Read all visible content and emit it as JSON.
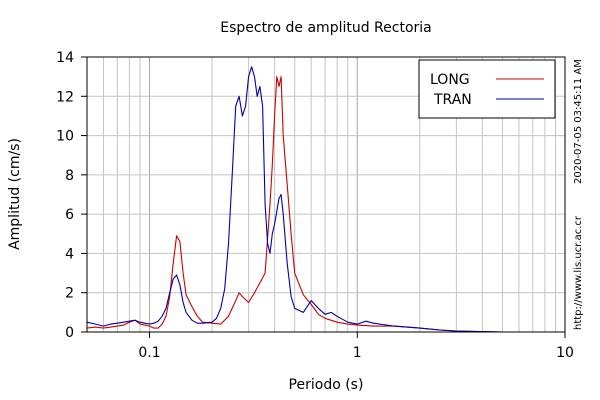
{
  "chart_data": {
    "type": "line",
    "title": "Espectro de amplitud Rectoria",
    "xlabel": "Periodo (s)",
    "ylabel": "Amplitud (cm/s)",
    "x_scale": "log",
    "xlim": [
      0.05,
      10
    ],
    "ylim": [
      0,
      14
    ],
    "x_ticks": [
      {
        "value": 0.1,
        "label": "0.1"
      },
      {
        "value": 1,
        "label": "1"
      },
      {
        "value": 10,
        "label": "10"
      }
    ],
    "y_ticks": [
      {
        "value": 0,
        "label": "0"
      },
      {
        "value": 2,
        "label": "2"
      },
      {
        "value": 4,
        "label": "4"
      },
      {
        "value": 6,
        "label": "6"
      },
      {
        "value": 8,
        "label": "8"
      },
      {
        "value": 10,
        "label": "10"
      },
      {
        "value": 12,
        "label": "12"
      },
      {
        "value": 14,
        "label": "14"
      }
    ],
    "grid": true,
    "legend": "top-right",
    "series": [
      {
        "name": "LONG",
        "color": "#cc0000",
        "points": [
          [
            0.05,
            0.2
          ],
          [
            0.055,
            0.25
          ],
          [
            0.06,
            0.2
          ],
          [
            0.065,
            0.25
          ],
          [
            0.07,
            0.3
          ],
          [
            0.075,
            0.35
          ],
          [
            0.08,
            0.5
          ],
          [
            0.085,
            0.6
          ],
          [
            0.09,
            0.4
          ],
          [
            0.095,
            0.35
          ],
          [
            0.1,
            0.3
          ],
          [
            0.105,
            0.2
          ],
          [
            0.11,
            0.2
          ],
          [
            0.115,
            0.4
          ],
          [
            0.12,
            0.8
          ],
          [
            0.125,
            1.8
          ],
          [
            0.13,
            3.5
          ],
          [
            0.135,
            4.9
          ],
          [
            0.14,
            4.6
          ],
          [
            0.145,
            3.0
          ],
          [
            0.15,
            1.9
          ],
          [
            0.16,
            1.3
          ],
          [
            0.17,
            0.8
          ],
          [
            0.18,
            0.5
          ],
          [
            0.2,
            0.45
          ],
          [
            0.22,
            0.4
          ],
          [
            0.24,
            0.8
          ],
          [
            0.26,
            1.6
          ],
          [
            0.27,
            2.0
          ],
          [
            0.28,
            1.8
          ],
          [
            0.3,
            1.5
          ],
          [
            0.32,
            2.0
          ],
          [
            0.34,
            2.5
          ],
          [
            0.36,
            3.0
          ],
          [
            0.38,
            6.5
          ],
          [
            0.39,
            8.5
          ],
          [
            0.4,
            11.0
          ],
          [
            0.41,
            13.0
          ],
          [
            0.42,
            12.5
          ],
          [
            0.43,
            13.0
          ],
          [
            0.44,
            10.0
          ],
          [
            0.46,
            7.5
          ],
          [
            0.48,
            5.0
          ],
          [
            0.5,
            3.0
          ],
          [
            0.55,
            1.9
          ],
          [
            0.6,
            1.4
          ],
          [
            0.65,
            0.9
          ],
          [
            0.7,
            0.7
          ],
          [
            0.8,
            0.5
          ],
          [
            0.9,
            0.4
          ],
          [
            1.0,
            0.35
          ],
          [
            1.2,
            0.3
          ],
          [
            1.5,
            0.3
          ],
          [
            2.0,
            0.2
          ],
          [
            2.5,
            0.1
          ],
          [
            3.0,
            0.05
          ],
          [
            5.0,
            0.0
          ],
          [
            10.0,
            0.0
          ]
        ]
      },
      {
        "name": "TRAN",
        "color": "#0000aa",
        "points": [
          [
            0.05,
            0.5
          ],
          [
            0.055,
            0.4
          ],
          [
            0.06,
            0.3
          ],
          [
            0.065,
            0.4
          ],
          [
            0.07,
            0.45
          ],
          [
            0.075,
            0.5
          ],
          [
            0.08,
            0.55
          ],
          [
            0.085,
            0.6
          ],
          [
            0.09,
            0.5
          ],
          [
            0.095,
            0.45
          ],
          [
            0.1,
            0.4
          ],
          [
            0.105,
            0.45
          ],
          [
            0.11,
            0.55
          ],
          [
            0.115,
            0.8
          ],
          [
            0.12,
            1.2
          ],
          [
            0.125,
            2.0
          ],
          [
            0.13,
            2.7
          ],
          [
            0.135,
            2.9
          ],
          [
            0.14,
            2.4
          ],
          [
            0.145,
            1.5
          ],
          [
            0.15,
            1.0
          ],
          [
            0.16,
            0.6
          ],
          [
            0.17,
            0.45
          ],
          [
            0.18,
            0.45
          ],
          [
            0.2,
            0.5
          ],
          [
            0.21,
            0.7
          ],
          [
            0.22,
            1.2
          ],
          [
            0.23,
            2.2
          ],
          [
            0.24,
            4.5
          ],
          [
            0.25,
            8.0
          ],
          [
            0.26,
            11.5
          ],
          [
            0.27,
            12.0
          ],
          [
            0.28,
            11.0
          ],
          [
            0.29,
            11.5
          ],
          [
            0.3,
            13.0
          ],
          [
            0.31,
            13.5
          ],
          [
            0.32,
            13.0
          ],
          [
            0.33,
            12.0
          ],
          [
            0.34,
            12.5
          ],
          [
            0.35,
            11.5
          ],
          [
            0.36,
            6.5
          ],
          [
            0.37,
            4.5
          ],
          [
            0.38,
            4.0
          ],
          [
            0.39,
            5.0
          ],
          [
            0.4,
            5.5
          ],
          [
            0.42,
            6.8
          ],
          [
            0.43,
            7.0
          ],
          [
            0.44,
            6.0
          ],
          [
            0.46,
            3.5
          ],
          [
            0.48,
            1.8
          ],
          [
            0.5,
            1.2
          ],
          [
            0.55,
            1.0
          ],
          [
            0.6,
            1.6
          ],
          [
            0.65,
            1.2
          ],
          [
            0.7,
            0.9
          ],
          [
            0.75,
            1.0
          ],
          [
            0.8,
            0.8
          ],
          [
            0.9,
            0.5
          ],
          [
            1.0,
            0.4
          ],
          [
            1.1,
            0.55
          ],
          [
            1.2,
            0.45
          ],
          [
            1.5,
            0.3
          ],
          [
            2.0,
            0.2
          ],
          [
            2.5,
            0.1
          ],
          [
            3.0,
            0.05
          ],
          [
            5.0,
            0.0
          ],
          [
            10.0,
            0.0
          ]
        ]
      }
    ]
  },
  "side_text": {
    "timestamp": "2020-07-05 03:45:11 AM",
    "url": "http://www.lis.ucr.ac.cr"
  }
}
